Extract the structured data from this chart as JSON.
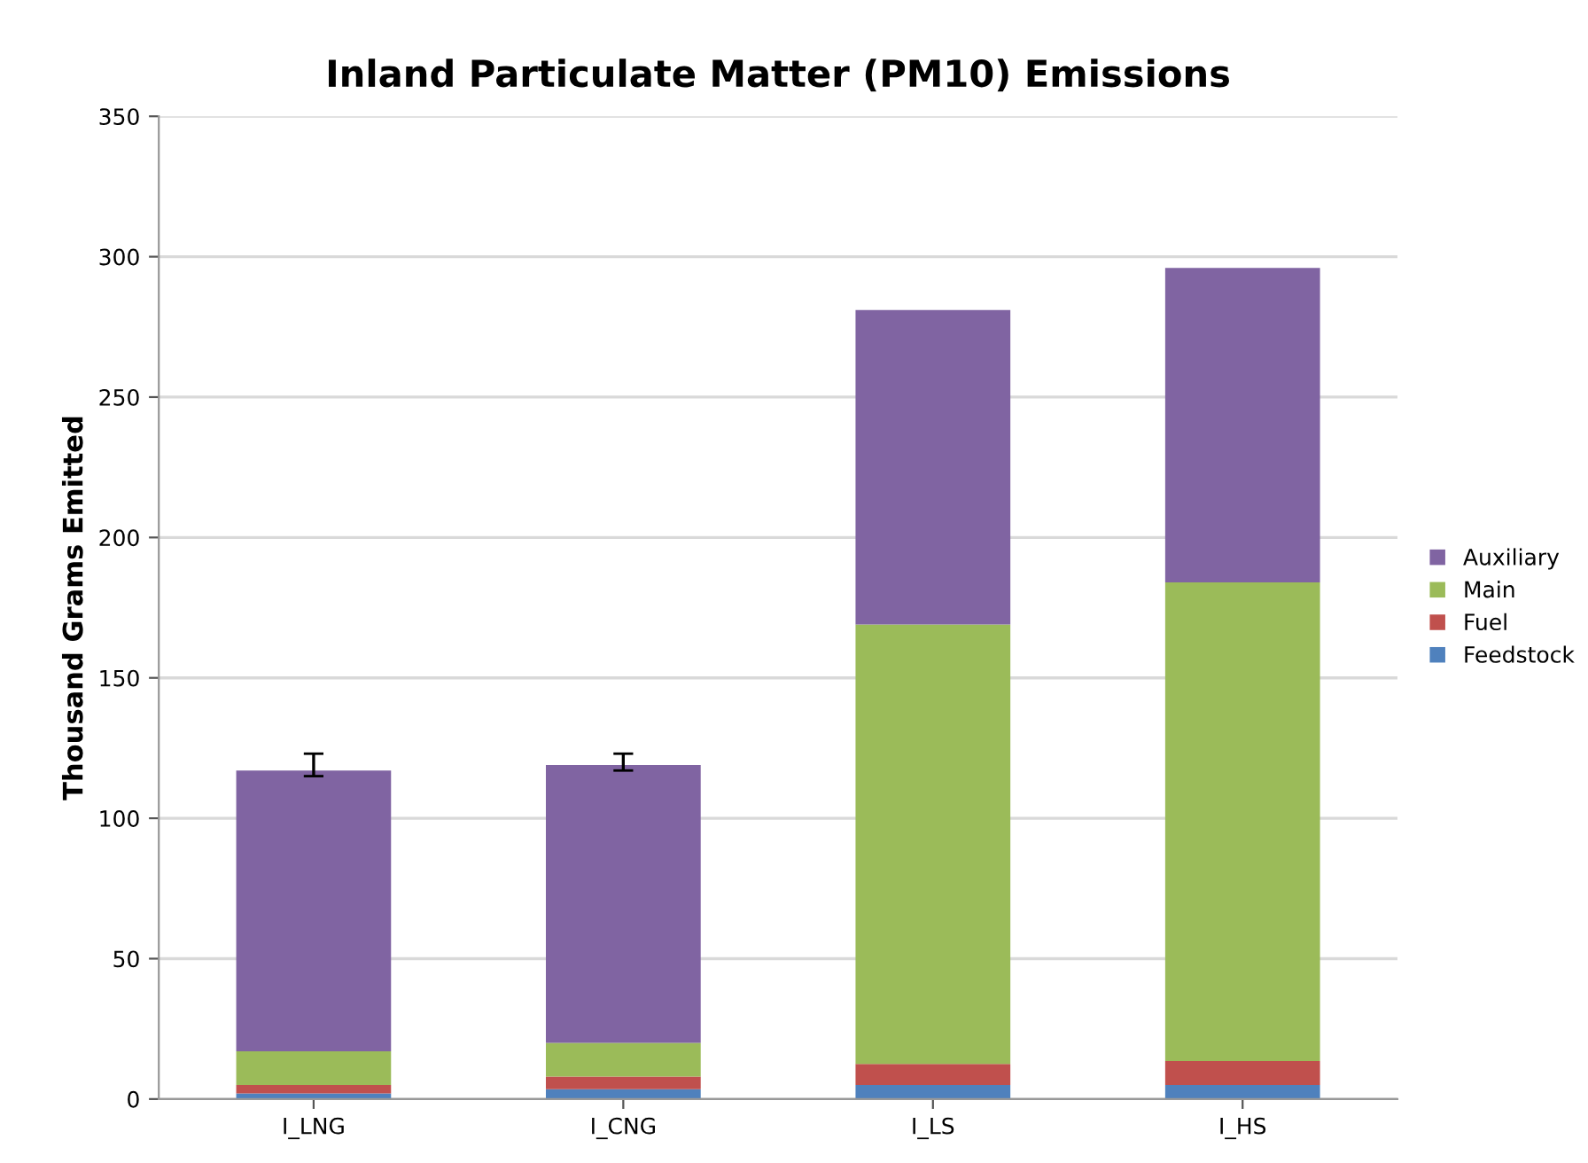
{
  "chart_data": {
    "type": "bar",
    "stacked": true,
    "title": "Inland Particulate Matter (PM10) Emissions",
    "ylabel": "Thousand Grams Emitted",
    "categories": [
      "I_LNG",
      "I_CNG",
      "I_LS",
      "I_HS"
    ],
    "series": [
      {
        "name": "Feedstock",
        "color": "#4f81bd",
        "values": [
          2,
          3.5,
          5,
          5
        ]
      },
      {
        "name": "Fuel",
        "color": "#c0504d",
        "values": [
          3,
          4.5,
          7.5,
          8.5
        ]
      },
      {
        "name": "Main",
        "color": "#9bbb59",
        "values": [
          12,
          12,
          156.5,
          170.5
        ]
      },
      {
        "name": "Auxiliary",
        "color": "#8064a2",
        "values": [
          100,
          99,
          112,
          112
        ],
        "errors": [
          [
            115,
            123
          ],
          [
            117,
            123
          ],
          null,
          null
        ]
      }
    ],
    "ylim": [
      0,
      350
    ],
    "yticks": [
      0,
      50,
      100,
      150,
      200,
      250,
      300,
      350
    ],
    "grid": "y",
    "legend": "right"
  }
}
